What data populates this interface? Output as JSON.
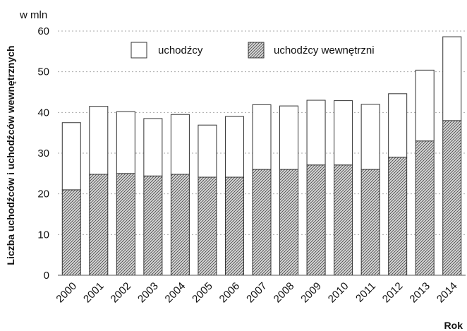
{
  "chart_data": {
    "type": "bar",
    "stacked": true,
    "categories": [
      "2000",
      "2001",
      "2002",
      "2003",
      "2004",
      "2005",
      "2006",
      "2007",
      "2008",
      "2009",
      "2010",
      "2011",
      "2012",
      "2013",
      "2014"
    ],
    "series": [
      {
        "name": "uchodźcy wewnętrzni",
        "values": [
          21,
          24.8,
          25,
          24.4,
          24.8,
          24.1,
          24.1,
          26,
          26,
          27.1,
          27.1,
          26,
          29,
          33,
          38
        ],
        "fill": "hatched"
      },
      {
        "name": "uchodźcy",
        "values": [
          16.5,
          16.7,
          15.2,
          14.1,
          14.7,
          12.8,
          14.9,
          15.9,
          15.6,
          15.9,
          15.8,
          16,
          15.6,
          17.4,
          20.6
        ],
        "fill": "white"
      }
    ],
    "unit_label": "w mln",
    "ylabel": "Liczba uchodźców i uchodźców wewnętrznych",
    "xlabel": "Rok",
    "ylim": [
      0,
      60
    ],
    "yticks": [
      0,
      10,
      20,
      30,
      40,
      50,
      60
    ],
    "grid": true,
    "legend_position": "top-left"
  },
  "colors": {
    "bar_outline": "#333333",
    "hatch": "#444444",
    "grid": "#aaaaaa",
    "axis": "#555555"
  }
}
